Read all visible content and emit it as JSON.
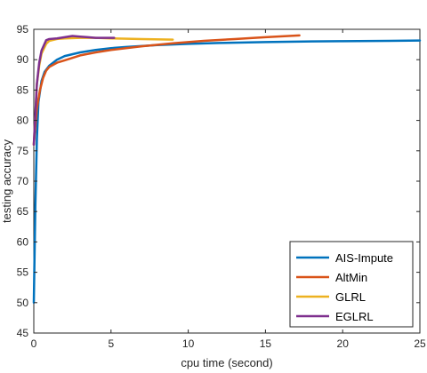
{
  "chart_data": {
    "type": "line",
    "xlabel": "cpu time (second)",
    "ylabel": "testing accuracy",
    "xlim": [
      0,
      25
    ],
    "ylim": [
      45,
      95
    ],
    "xticks": [
      0,
      5,
      10,
      15,
      20,
      25
    ],
    "yticks": [
      45,
      50,
      55,
      60,
      65,
      70,
      75,
      80,
      85,
      90,
      95
    ],
    "grid": false,
    "legend_position": "bottom-right",
    "series": [
      {
        "name": "AIS-Impute",
        "color": "#0072BD",
        "x": [
          0,
          0.1,
          0.2,
          0.3,
          0.5,
          0.7,
          1.0,
          1.5,
          2,
          3,
          4,
          5,
          6,
          8,
          10,
          12,
          15,
          18,
          20,
          23,
          25
        ],
        "y": [
          50,
          66,
          77,
          83,
          86.5,
          88,
          89,
          90,
          90.6,
          91.2,
          91.6,
          91.9,
          92.1,
          92.4,
          92.6,
          92.75,
          92.9,
          93.0,
          93.05,
          93.1,
          93.15
        ]
      },
      {
        "name": "AltMin",
        "color": "#D95319",
        "x": [
          0,
          0.1,
          0.2,
          0.4,
          0.6,
          0.8,
          1.0,
          1.5,
          2,
          3,
          4,
          5,
          7,
          9,
          11,
          13,
          15,
          17.2
        ],
        "y": [
          76,
          79,
          82,
          85,
          87,
          88.2,
          88.8,
          89.5,
          89.9,
          90.7,
          91.2,
          91.6,
          92.2,
          92.7,
          93.1,
          93.4,
          93.7,
          94.0
        ]
      },
      {
        "name": "GLRL",
        "color": "#EDB120",
        "x": [
          0,
          0.1,
          0.2,
          0.35,
          0.5,
          0.8,
          1.0,
          1.5,
          2,
          3,
          4,
          5,
          7,
          9
        ],
        "y": [
          76,
          81,
          86,
          89,
          91,
          92.6,
          93.1,
          93.4,
          93.5,
          93.6,
          93.6,
          93.5,
          93.4,
          93.3
        ]
      },
      {
        "name": "EGLRL",
        "color": "#7E2F8E",
        "x": [
          0,
          0.1,
          0.2,
          0.35,
          0.5,
          0.8,
          1.0,
          1.5,
          2,
          2.5,
          3,
          3.5,
          4,
          5.2
        ],
        "y": [
          76,
          81,
          86,
          89.5,
          91.5,
          93.2,
          93.4,
          93.5,
          93.7,
          93.9,
          93.8,
          93.7,
          93.6,
          93.6
        ]
      }
    ]
  }
}
